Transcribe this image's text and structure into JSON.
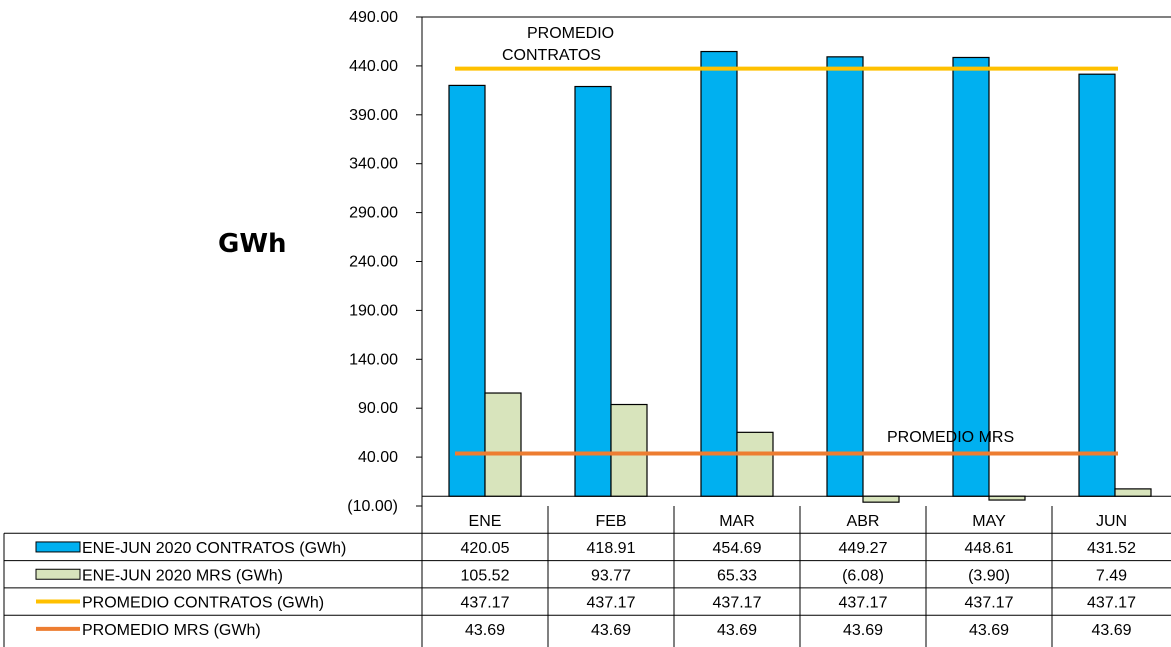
{
  "chart_data": {
    "type": "bar",
    "ylabel": "GWh",
    "ylim": [
      -10,
      490
    ],
    "yticks": [
      "(10.00)",
      "40.00",
      "90.00",
      "140.00",
      "190.00",
      "240.00",
      "290.00",
      "340.00",
      "390.00",
      "440.00",
      "490.00"
    ],
    "ytick_values": [
      -10,
      40,
      90,
      140,
      190,
      240,
      290,
      340,
      390,
      440,
      490
    ],
    "categories": [
      "ENE",
      "FEB",
      "MAR",
      "ABR",
      "MAY",
      "JUN"
    ],
    "series": [
      {
        "name": "ENE-JUN 2020 CONTRATOS (GWh)",
        "kind": "bar",
        "color": "#00B0F0",
        "values": [
          420.05,
          418.91,
          454.69,
          449.27,
          448.61,
          431.52
        ],
        "labels": [
          "420.05",
          "418.91",
          "454.69",
          "449.27",
          "448.61",
          "431.52"
        ]
      },
      {
        "name": "ENE-JUN 2020 MRS (GWh)",
        "kind": "bar",
        "color": "#D8E4BC",
        "values": [
          105.52,
          93.77,
          65.33,
          -6.08,
          -3.9,
          7.49
        ],
        "labels": [
          "105.52",
          "93.77",
          "65.33",
          "(6.08)",
          "(3.90)",
          "7.49"
        ]
      },
      {
        "name": "PROMEDIO CONTRATOS (GWh)",
        "kind": "line",
        "color": "#FFC000",
        "values": [
          437.17,
          437.17,
          437.17,
          437.17,
          437.17,
          437.17
        ],
        "labels": [
          "437.17",
          "437.17",
          "437.17",
          "437.17",
          "437.17",
          "437.17"
        ]
      },
      {
        "name": "PROMEDIO MRS (GWh)",
        "kind": "line",
        "color": "#ED7D31",
        "values": [
          43.69,
          43.69,
          43.69,
          43.69,
          43.69,
          43.69
        ],
        "labels": [
          "43.69",
          "43.69",
          "43.69",
          "43.69",
          "43.69",
          "43.69"
        ]
      }
    ],
    "annotations": {
      "contratos_line1": "PROMEDIO",
      "contratos_line2": "CONTRATOS",
      "mrs": "PROMEDIO MRS"
    },
    "legend": "data-table-below",
    "grid": false
  }
}
